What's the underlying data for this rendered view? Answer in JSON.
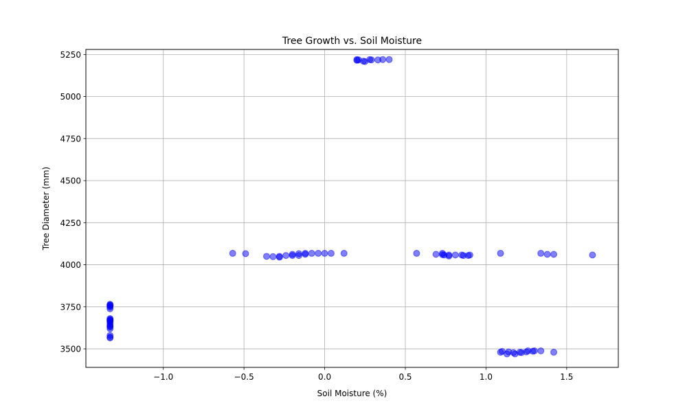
{
  "chart_data": {
    "type": "scatter",
    "title": "Tree Growth vs. Soil Moisture",
    "xlabel": "Soil Moisture (%)",
    "ylabel": "Tree Diameter (mm)",
    "xlim": [
      -1.48,
      1.82
    ],
    "ylim": [
      3390,
      5280
    ],
    "xticks": [
      -1.0,
      -0.5,
      0.0,
      0.5,
      1.0,
      1.5
    ],
    "xtick_labels": [
      "−1.0",
      "−0.5",
      "0.0",
      "0.5",
      "1.0",
      "1.5"
    ],
    "yticks": [
      3500,
      3750,
      4000,
      4250,
      4500,
      4750,
      5000,
      5250
    ],
    "ytick_labels": [
      "3500",
      "3750",
      "4000",
      "4250",
      "4500",
      "4750",
      "5000",
      "5250"
    ],
    "grid": true,
    "marker_color": "#0000ff",
    "marker_alpha": 0.5,
    "x": [
      -1.33,
      -1.33,
      -1.33,
      -1.33,
      -1.33,
      -1.33,
      -1.33,
      -1.33,
      -1.33,
      -1.33,
      -1.33,
      -1.33,
      -1.33,
      -1.33,
      -1.33,
      -1.33,
      -1.33,
      -1.33,
      -1.33,
      -1.33,
      -0.57,
      -0.49,
      -0.36,
      -0.32,
      -0.28,
      -0.28,
      -0.24,
      -0.2,
      -0.2,
      -0.16,
      -0.16,
      -0.12,
      -0.12,
      -0.08,
      -0.04,
      0.0,
      0.04,
      0.12,
      0.2,
      0.2,
      0.21,
      0.24,
      0.25,
      0.28,
      0.29,
      0.33,
      0.36,
      0.4,
      0.57,
      0.69,
      0.73,
      0.73,
      0.74,
      0.77,
      0.77,
      0.81,
      0.85,
      0.86,
      0.89,
      0.9,
      1.09,
      1.34,
      1.38,
      1.42,
      1.66,
      1.09,
      1.1,
      1.13,
      1.14,
      1.17,
      1.18,
      1.21,
      1.22,
      1.25,
      1.26,
      1.29,
      1.3,
      1.34,
      1.42
    ],
    "y": [
      3765,
      3760,
      3755,
      3748,
      3738,
      3680,
      3675,
      3670,
      3665,
      3660,
      3640,
      3635,
      3630,
      3620,
      3580,
      3565,
      3570,
      3760,
      3670,
      3650,
      4068,
      4066,
      4050,
      4048,
      4045,
      4050,
      4055,
      4055,
      4062,
      4055,
      4066,
      4062,
      4068,
      4068,
      4068,
      4068,
      4068,
      4068,
      5220,
      5215,
      5218,
      5210,
      5208,
      5220,
      5218,
      5218,
      5220,
      5220,
      4068,
      4062,
      4060,
      4068,
      4058,
      4058,
      4052,
      4058,
      4058,
      4055,
      4055,
      4058,
      4068,
      4068,
      4062,
      4062,
      4058,
      3480,
      3485,
      3470,
      3482,
      3478,
      3470,
      3480,
      3478,
      3482,
      3488,
      3486,
      3488,
      3488,
      3480
    ]
  }
}
